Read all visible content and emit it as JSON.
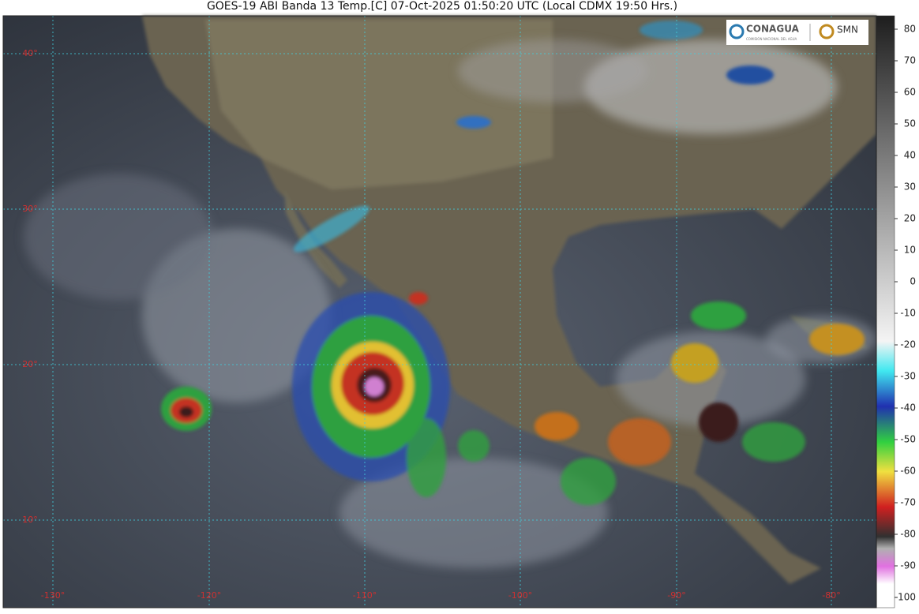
{
  "title": "GOES-19 ABI Banda 13 Temp.[C] 07-Oct-2025 01:50:20 UTC (Local CDMX  19:50 Hrs.)",
  "logos": {
    "conagua": "CONAGUA",
    "conagua_subtitle": "COMISIÓN NACIONAL DEL AGUA",
    "smn": "SMN"
  },
  "colorbar": {
    "ticks": [
      80,
      70,
      60,
      50,
      40,
      30,
      20,
      10,
      0,
      -10,
      -20,
      -30,
      -40,
      -50,
      -60,
      -70,
      -80,
      -90,
      -100
    ]
  },
  "latitude_labels": [
    "40°",
    "30°",
    "20°",
    "10°"
  ],
  "longitude_labels": [
    "-130°",
    "-120°",
    "-110°",
    "-100°",
    "-90°",
    "-80°"
  ]
}
